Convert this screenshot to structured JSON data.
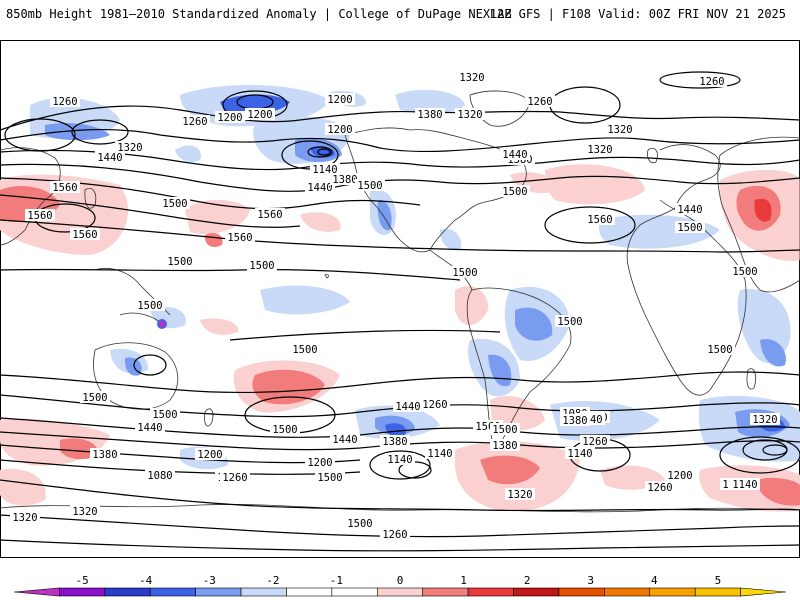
{
  "header": {
    "left_title": "850mb Height 1981–2010 Standardized Anomaly | College of DuPage NEXLAB",
    "right_title": "12Z GFS | F108 Valid: 00Z FRI NOV 21 2025"
  },
  "palette": {
    "neg3": "#3c62e6",
    "neg2": "#7a9cf0",
    "neg1": "#c8daf8",
    "pos1": "#fbd0d0",
    "pos2": "#f27c7c",
    "pos3": "#e83a3a",
    "contour": "#000000",
    "coast": "#333333"
  },
  "colorbar": {
    "ticks": [
      "-5",
      "-4",
      "-3",
      "-2",
      "-1",
      "0",
      "1",
      "2",
      "3",
      "4",
      "5"
    ],
    "colors": [
      "#c030c0",
      "#8a10c8",
      "#2a3cc8",
      "#3c62e6",
      "#7a9cf0",
      "#c8daf8",
      "#ffffff",
      "#ffffff",
      "#fbd0d0",
      "#f27c7c",
      "#e83a3a",
      "#c01818",
      "#e85000",
      "#f07800",
      "#f8a000",
      "#f8c000",
      "#f8d800"
    ]
  },
  "contour_labels": [
    "1320",
    "1260",
    "1260",
    "1200",
    "1200",
    "1200",
    "1260",
    "1200",
    "1260",
    "1320",
    "1380",
    "1440",
    "1320",
    "1320",
    "1140",
    "1440",
    "1380",
    "1500",
    "1320",
    "1380",
    "1440",
    "1500",
    "1560",
    "1560",
    "1560",
    "1500",
    "1560",
    "1560",
    "1500",
    "1560",
    "1440",
    "1500",
    "1500",
    "1500",
    "1500",
    "1500",
    "1500",
    "1500",
    "1500",
    "1500",
    "1500",
    "1560",
    "1500",
    "1440",
    "1380",
    "1260",
    "1140",
    "1200",
    "1080",
    "1380",
    "1320",
    "1260",
    "1200",
    "1320",
    "1080",
    "1140",
    "1440",
    "1500",
    "1500",
    "1380",
    "1260",
    "1440",
    "1320",
    "1140",
    "1260",
    "1200",
    "1140",
    "1320",
    "1200",
    "1380",
    "1260",
    "1320",
    "1140",
    "1500",
    "1140",
    "1260"
  ]
}
